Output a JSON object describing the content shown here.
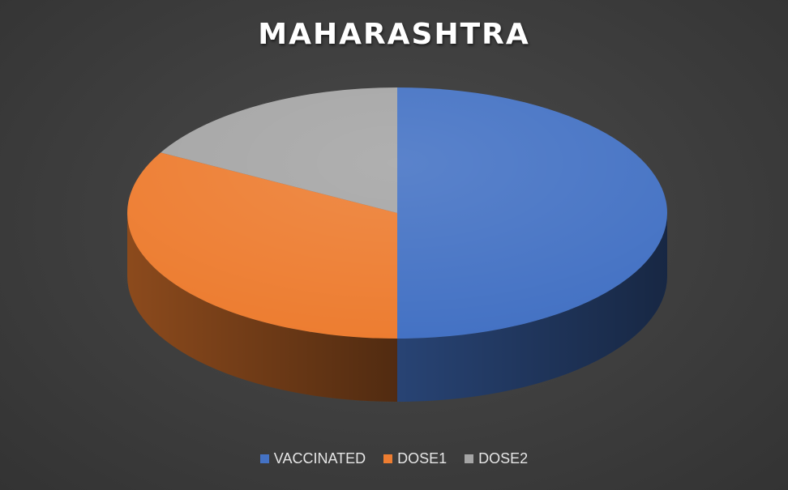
{
  "chart_data": {
    "type": "pie",
    "title": "MAHARASHTRA",
    "categories": [
      "VACCINATED",
      "DOSE1",
      "DOSE2"
    ],
    "values": [
      50,
      33,
      17
    ],
    "colors": [
      "#4472c4",
      "#ed7d31",
      "#a5a5a5"
    ],
    "legend_position": "bottom",
    "three_d": true
  }
}
